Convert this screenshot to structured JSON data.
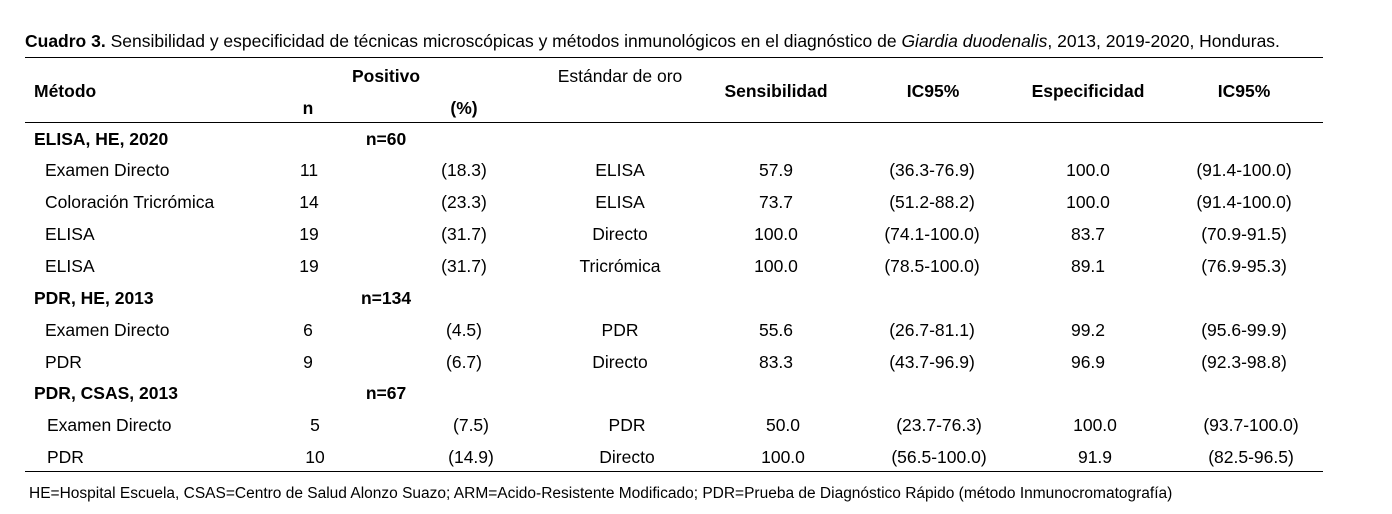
{
  "caption": {
    "label": "Cuadro 3.",
    "text_before": " Sensibilidad y especificidad de técnicas microscópicas y métodos inmunológicos en el diagnóstico de ",
    "italic": "Giardia duodenalis",
    "text_after": ", 2013, 2019-2020, Honduras."
  },
  "headers": {
    "metodo": "Método",
    "positivo": "Positivo",
    "n": "n",
    "pct": "(%)",
    "estandar": "Estándar de oro",
    "sensibilidad": "Sensibilidad",
    "ic95_sens": "IC95%",
    "especificidad": "Especificidad",
    "ic95_esp": "IC95%"
  },
  "groups": [
    {
      "title": "ELISA, HE, 2020",
      "n": "n=60",
      "rows": [
        {
          "metodo": "Examen Directo",
          "n": "11",
          "pct": "(18.3)",
          "estandar": "ELISA",
          "sens": "57.9",
          "ic_sens": "(36.3-76.9)",
          "esp": "100.0",
          "ic_esp": "(91.4-100.0)"
        },
        {
          "metodo": "Coloración Tricrómica",
          "n": "14",
          "pct": "(23.3)",
          "estandar": "ELISA",
          "sens": "73.7",
          "ic_sens": "(51.2-88.2)",
          "esp": "100.0",
          "ic_esp": "(91.4-100.0)"
        },
        {
          "metodo": "ELISA",
          "n": "19",
          "pct": "(31.7)",
          "estandar": "Directo",
          "sens": "100.0",
          "ic_sens": "(74.1-100.0)",
          "esp": "83.7",
          "ic_esp": "(70.9-91.5)"
        },
        {
          "metodo": "ELISA",
          "n": "19",
          "pct": "(31.7)",
          "estandar": "Tricrómica",
          "sens": "100.0",
          "ic_sens": "(78.5-100.0)",
          "esp": "89.1",
          "ic_esp": "(76.9-95.3)"
        }
      ]
    },
    {
      "title": "PDR, HE, 2013",
      "n": "n=134",
      "rows": [
        {
          "metodo": "Examen Directo",
          "n": "6",
          "pct": "(4.5)",
          "estandar": "PDR",
          "sens": "55.6",
          "ic_sens": "(26.7-81.1)",
          "esp": "99.2",
          "ic_esp": "(95.6-99.9)"
        },
        {
          "metodo": "PDR",
          "n": "9",
          "pct": "(6.7)",
          "estandar": "Directo",
          "sens": "83.3",
          "ic_sens": "(43.7-96.9)",
          "esp": "96.9",
          "ic_esp": "(92.3-98.8)"
        }
      ]
    },
    {
      "title": "PDR, CSAS, 2013",
      "n": "n=67",
      "rows": [
        {
          "metodo": "Examen Directo",
          "n": "5",
          "pct": "(7.5)",
          "estandar": "PDR",
          "sens": "50.0",
          "ic_sens": "(23.7-76.3)",
          "esp": "100.0",
          "ic_esp": "(93.7-100.0)"
        },
        {
          "metodo": "PDR",
          "n": "10",
          "pct": "(14.9)",
          "estandar": "Directo",
          "sens": "100.0",
          "ic_sens": "(56.5-100.0)",
          "esp": "91.9",
          "ic_esp": "(82.5-96.5)"
        }
      ]
    }
  ],
  "footnote": "HE=Hospital Escuela, CSAS=Centro de Salud Alonzo Suazo; ARM=Acido-Resistente Modificado; PDR=Prueba de Diagnóstico Rápido (método Inmunocromatografía)"
}
